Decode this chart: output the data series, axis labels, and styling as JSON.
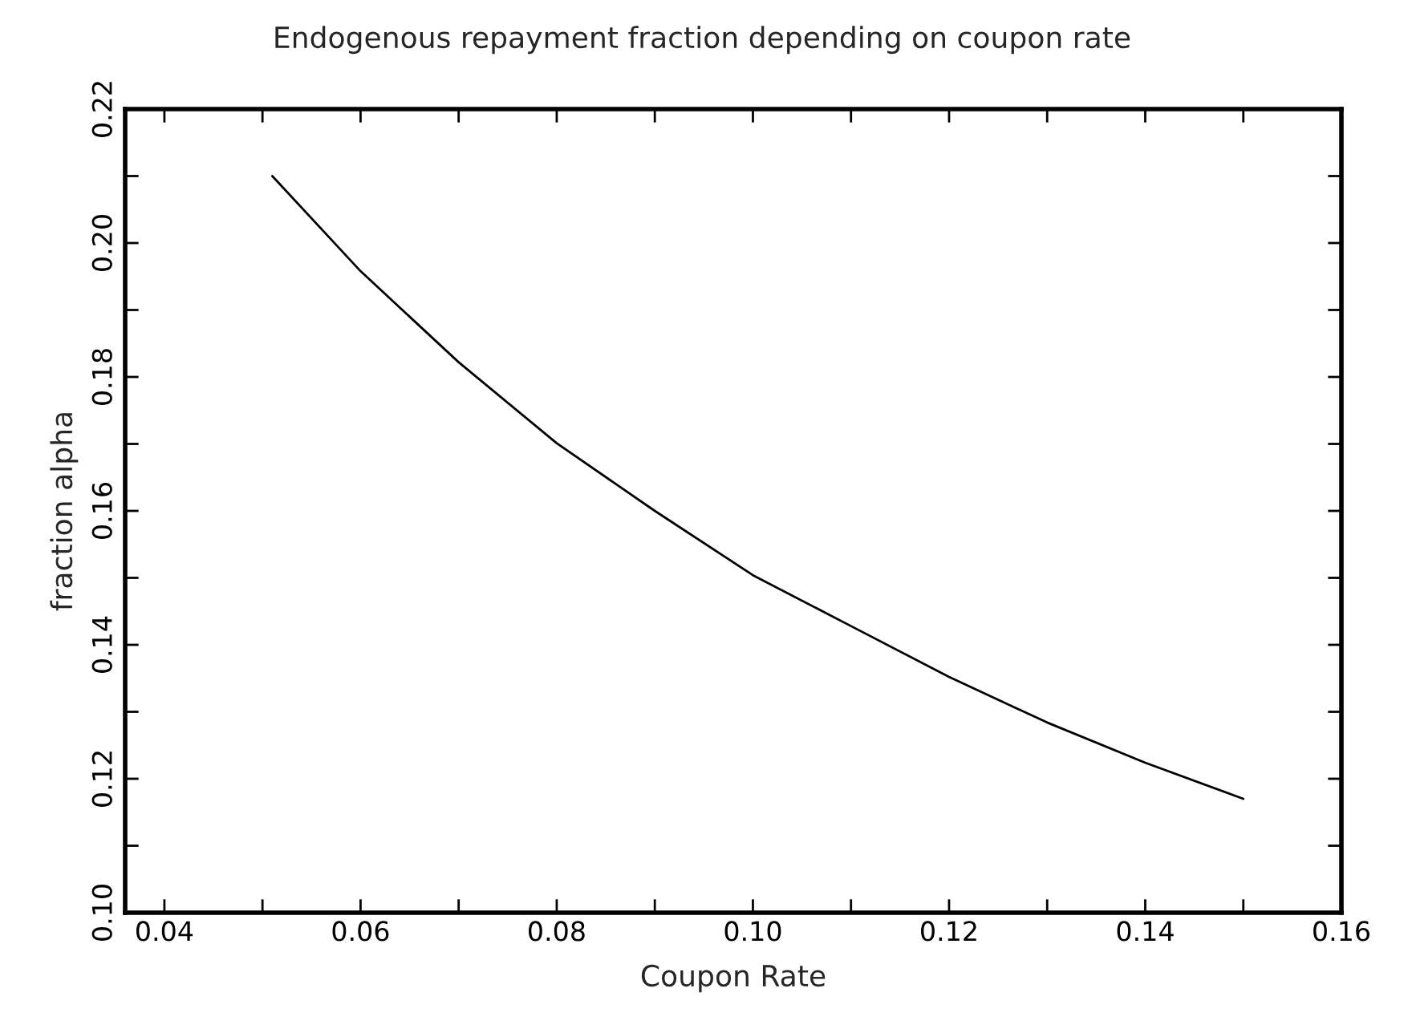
{
  "chart_data": {
    "type": "line",
    "title": "Endogenous repayment fraction depending on coupon rate",
    "xlabel": "Coupon Rate",
    "ylabel": "fraction alpha",
    "x": [
      0.051,
      0.06,
      0.07,
      0.08,
      0.09,
      0.1,
      0.11,
      0.12,
      0.13,
      0.14,
      0.15
    ],
    "series": [
      {
        "color": "#000000",
        "values": [
          0.21,
          0.1958,
          0.1822,
          0.1701,
          0.16,
          0.1504,
          0.1428,
          0.1352,
          0.1284,
          0.1224,
          0.117
        ]
      }
    ],
    "xlim": [
      0.036,
      0.16
    ],
    "ylim": [
      0.1,
      0.22
    ],
    "xticks": [
      0.04,
      {
        "value": 0.05,
        "label": null
      },
      0.06,
      {
        "value": 0.07,
        "label": null
      },
      0.08,
      {
        "value": 0.09,
        "label": null
      },
      {
        "value": 0.1,
        "label": "0.10"
      },
      {
        "value": 0.11,
        "label": null
      },
      0.12,
      {
        "value": 0.13,
        "label": null
      },
      0.14,
      {
        "value": 0.15,
        "label": null
      },
      0.16
    ],
    "yticks": [
      {
        "value": 0.1,
        "label": "0.10"
      },
      {
        "value": 0.11,
        "label": null
      },
      0.12,
      {
        "value": 0.13,
        "label": null
      },
      0.14,
      {
        "value": 0.15,
        "label": null
      },
      0.16,
      {
        "value": 0.17,
        "label": null
      },
      0.18,
      {
        "value": 0.19,
        "label": null
      },
      {
        "value": 0.2,
        "label": "0.20"
      },
      {
        "value": 0.21,
        "label": null
      },
      0.22
    ],
    "grid": false,
    "marker": "none",
    "line_style": "solid"
  }
}
